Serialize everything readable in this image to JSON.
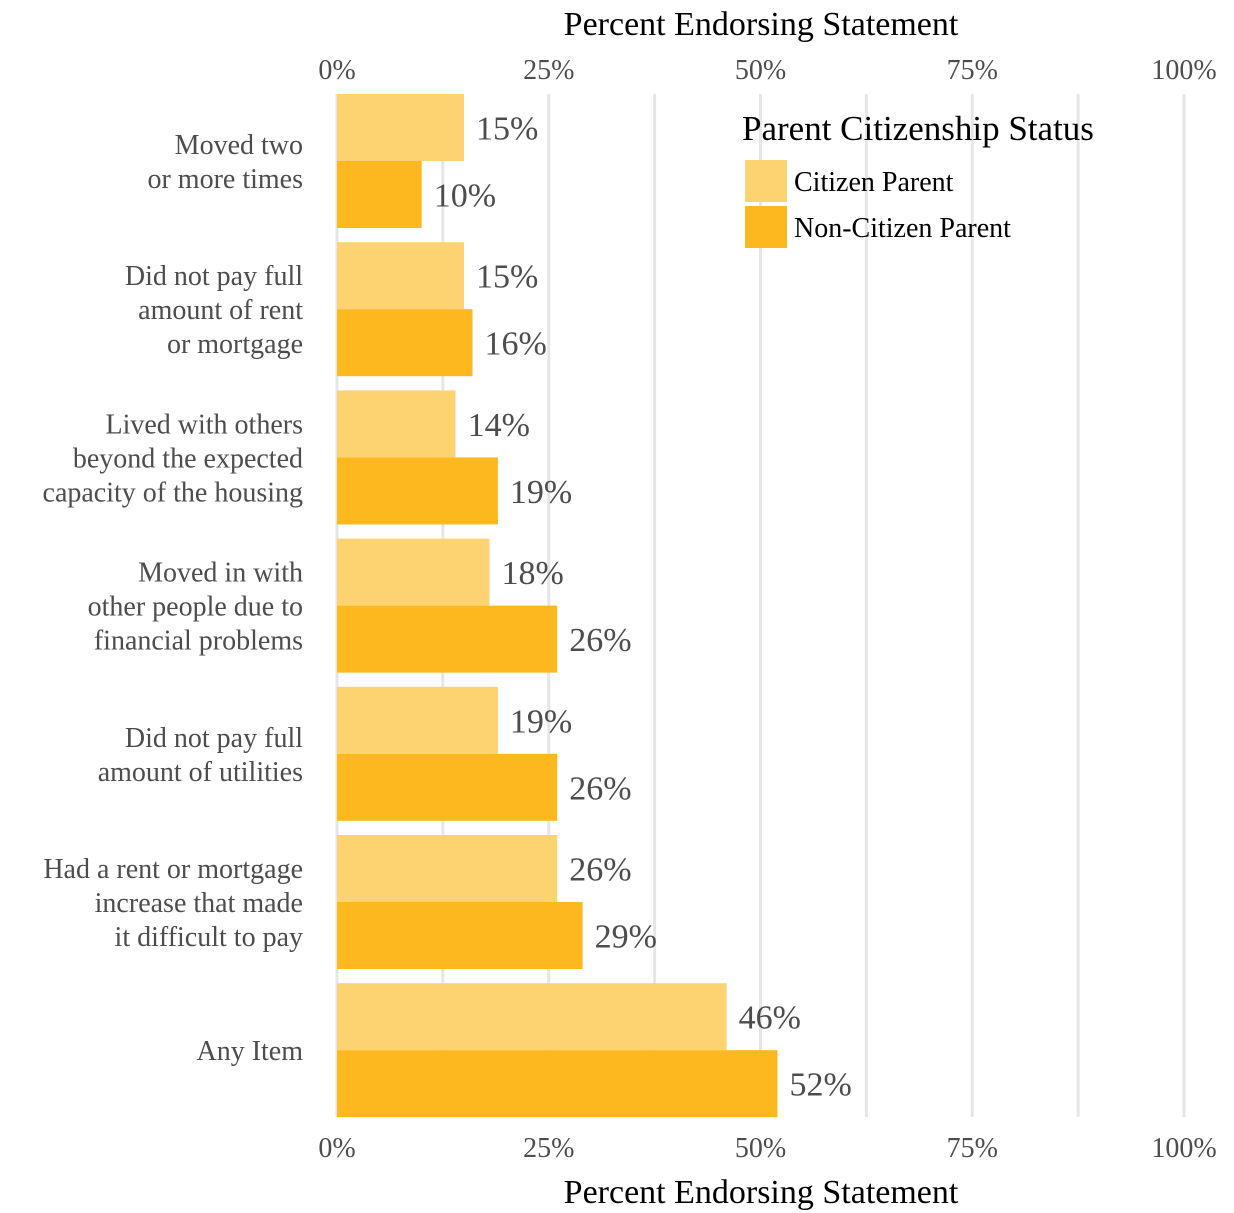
{
  "chart_data": {
    "type": "bar",
    "orientation": "horizontal",
    "xlabel": "Percent Endorsing Statement",
    "xlim": [
      0,
      100
    ],
    "x_ticks": [
      "0%",
      "25%",
      "50%",
      "75%",
      "100%"
    ],
    "categories": [
      "Moved two\nor more times",
      "Did not pay full\namount of rent\nor mortgage",
      "Lived with others\nbeyond the expected\ncapacity of the housing",
      "Moved in with\nother people due to\nfinancial problems",
      "Did not pay full\namount of utilities",
      "Had a rent or mortgage\nincrease that made\nit difficult to pay",
      "Any Item"
    ],
    "series": [
      {
        "name": "Citizen Parent",
        "color": "#fdd371",
        "values": [
          15,
          15,
          14,
          18,
          19,
          26,
          46
        ],
        "labels": [
          "15%",
          "15%",
          "14%",
          "18%",
          "19%",
          "26%",
          "46%"
        ]
      },
      {
        "name": "Non-Citizen Parent",
        "color": "#fdb71f",
        "values": [
          10,
          16,
          19,
          26,
          26,
          29,
          52
        ],
        "labels": [
          "10%",
          "16%",
          "19%",
          "26%",
          "26%",
          "29%",
          "52%"
        ]
      }
    ],
    "legend": {
      "title": "Parent Citizenship Status",
      "position": "top-right"
    },
    "grid": true,
    "axis_positions": [
      "top",
      "bottom"
    ]
  }
}
